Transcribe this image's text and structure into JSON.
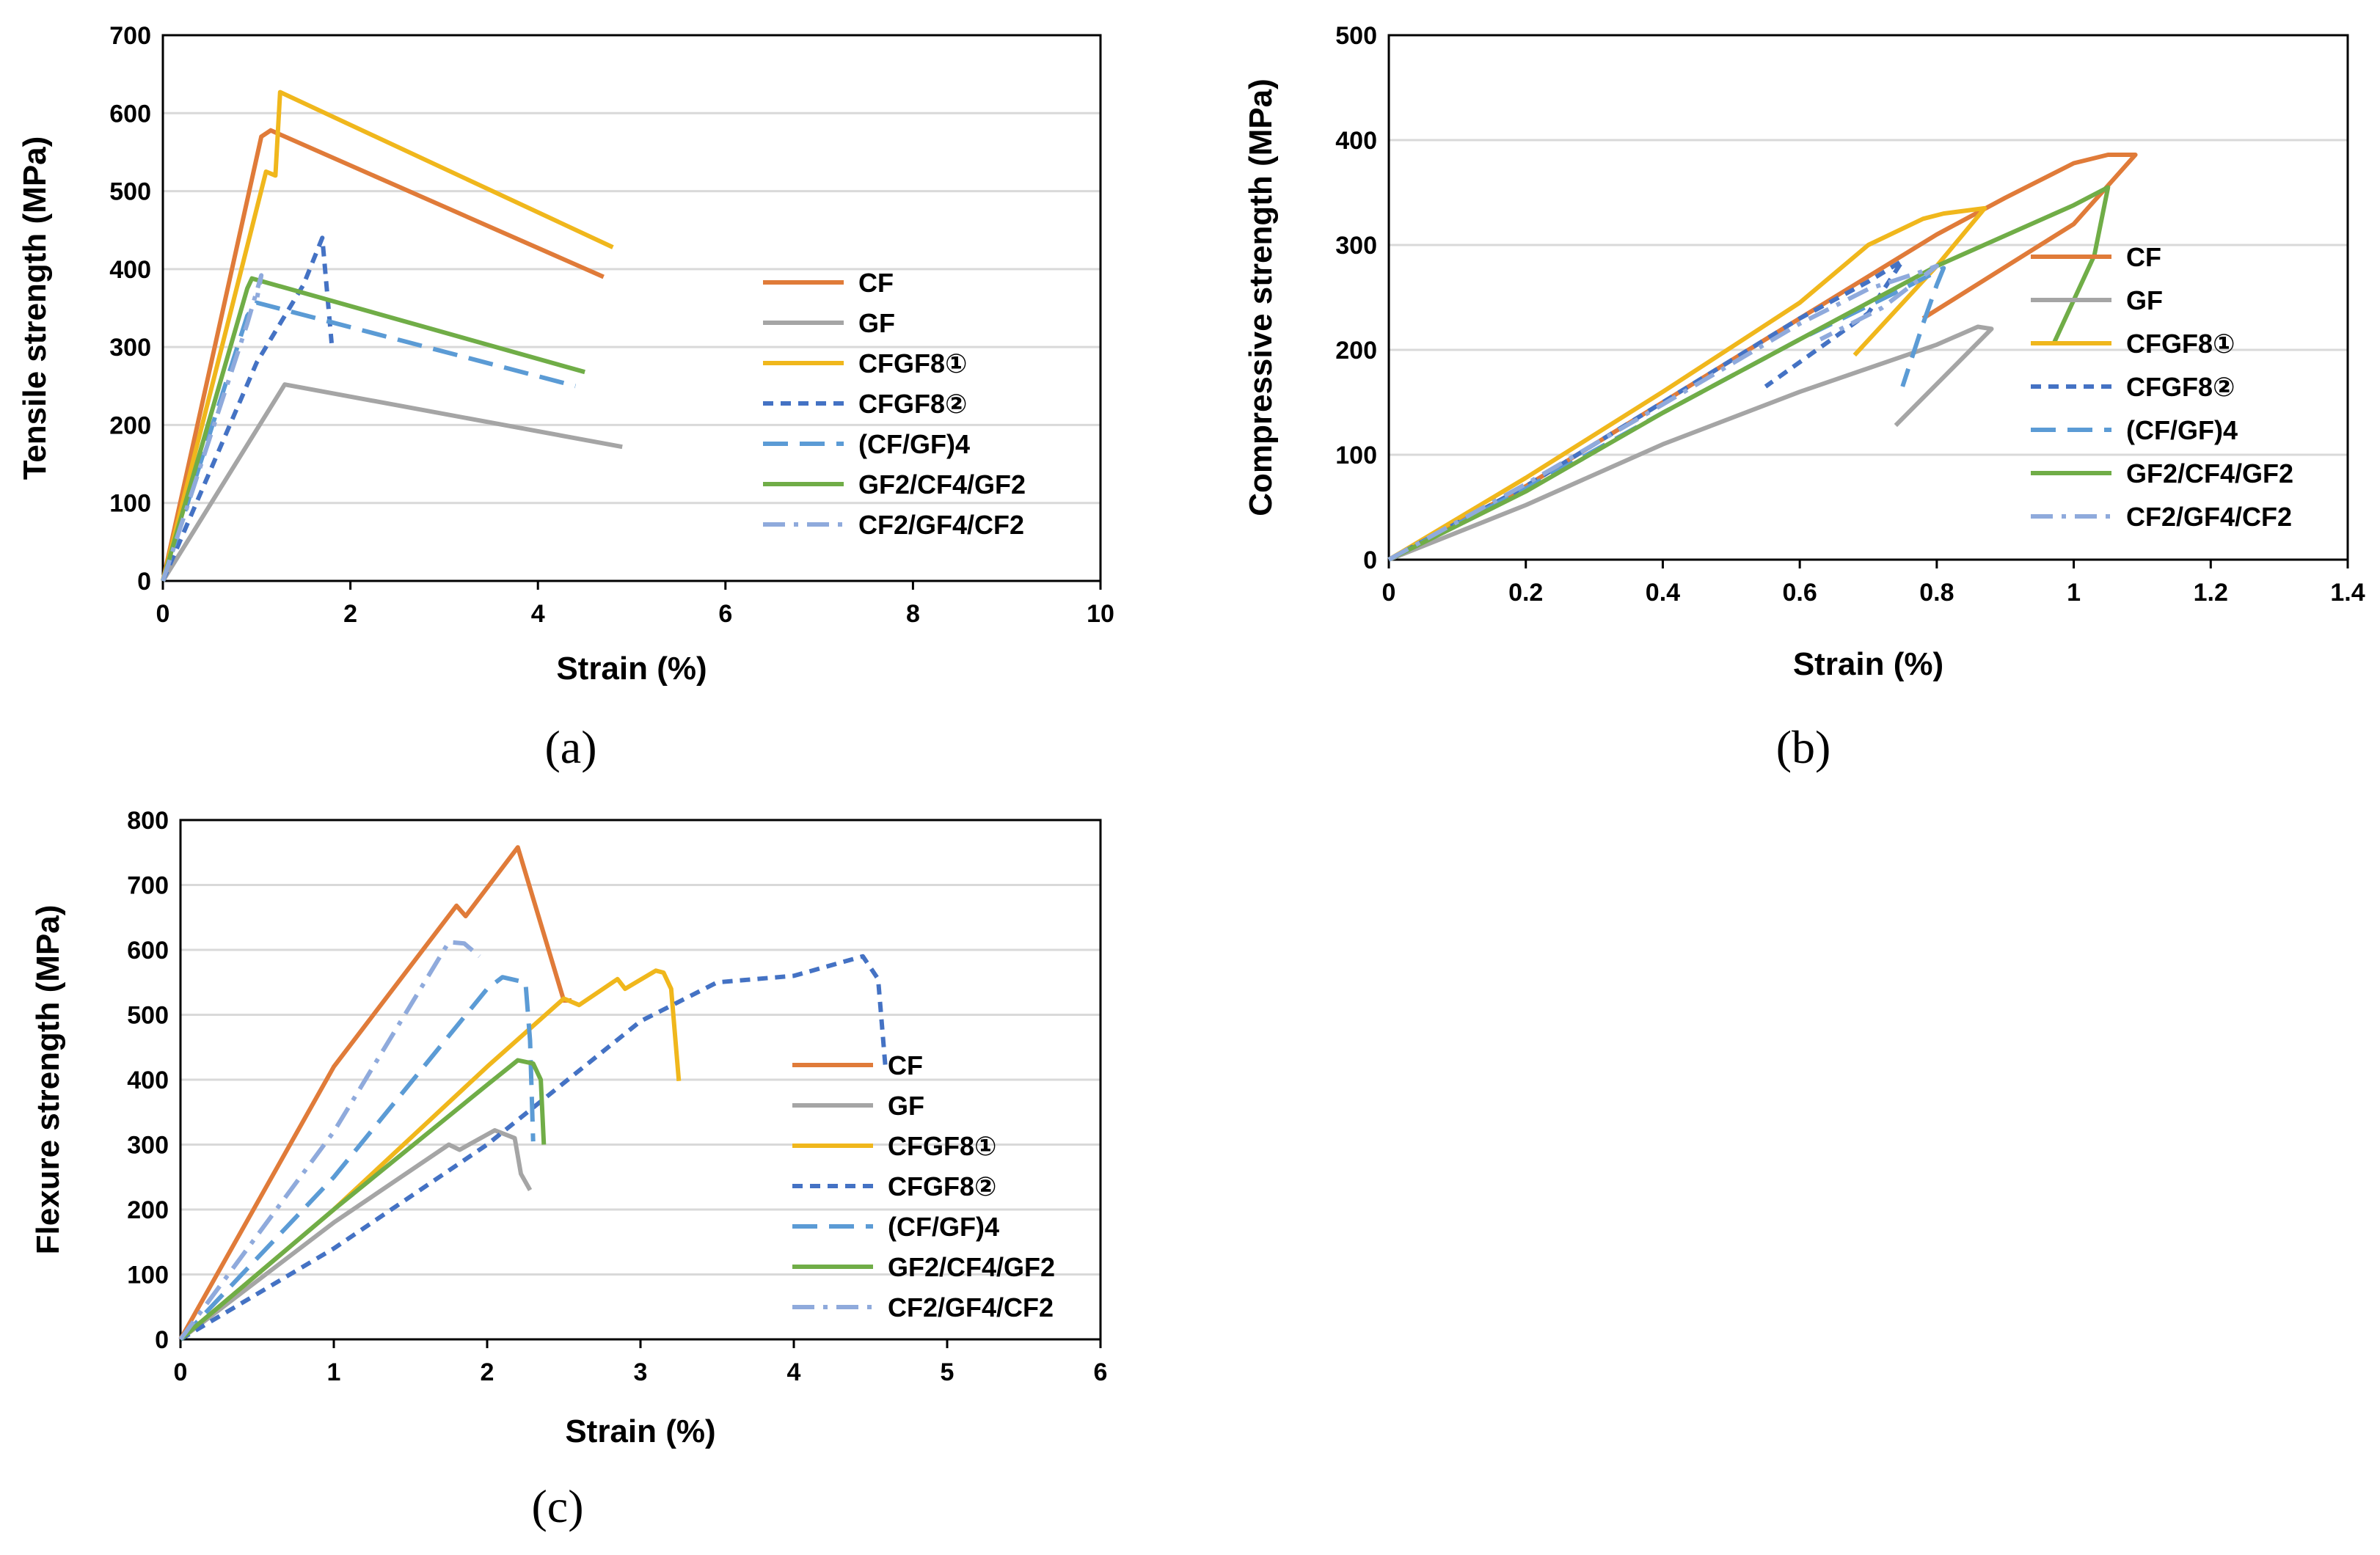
{
  "chart_data": [
    {
      "type": "line",
      "panel_label": "(a)",
      "xlabel": "Strain (%)",
      "ylabel": "Tensile strength (MPa)",
      "xlim": [
        0,
        10
      ],
      "ylim": [
        0,
        700
      ],
      "xticks": [
        0,
        2,
        4,
        6,
        8,
        10
      ],
      "yticks": [
        0,
        100,
        200,
        300,
        400,
        500,
        600,
        700
      ],
      "grid": "horizontal",
      "legend_position": "right",
      "series": [
        {
          "name": "CF",
          "color": "#E07B39",
          "dash": "solid",
          "x": [
            0,
            1.05,
            1.15,
            4.7
          ],
          "y": [
            0,
            570,
            578,
            390
          ]
        },
        {
          "name": "GF",
          "color": "#A5A5A5",
          "dash": "solid",
          "x": [
            0,
            1.3,
            4.9
          ],
          "y": [
            0,
            252,
            172
          ]
        },
        {
          "name": "CFGF8①",
          "color": "#F0B71C",
          "dash": "solid",
          "x": [
            0,
            1.1,
            1.2,
            1.25,
            4.8
          ],
          "y": [
            0,
            525,
            520,
            627,
            428
          ]
        },
        {
          "name": "CFGF8②",
          "color": "#4472C4",
          "dash": "short",
          "x": [
            0,
            1.0,
            1.5,
            1.7,
            1.8
          ],
          "y": [
            0,
            280,
            380,
            440,
            305
          ]
        },
        {
          "name": "(CF/GF)4",
          "color": "#5B9BD5",
          "dash": "long",
          "x": [
            0,
            0.9,
            1.0,
            4.4
          ],
          "y": [
            0,
            340,
            357,
            250
          ]
        },
        {
          "name": "GF2/CF4/GF2",
          "color": "#70AD47",
          "dash": "solid",
          "x": [
            0,
            0.9,
            0.95,
            4.5
          ],
          "y": [
            0,
            375,
            388,
            268
          ]
        },
        {
          "name": "CF2/GF4/CF2",
          "color": "#8FAADC",
          "dash": "dashdot",
          "x": [
            0,
            0.9,
            1.05,
            1.0
          ],
          "y": [
            0,
            330,
            392,
            360
          ]
        }
      ]
    },
    {
      "type": "line",
      "panel_label": "(b)",
      "xlabel": "Strain (%)",
      "ylabel": "Compressive strength (MPa)",
      "xlim": [
        0,
        1.4
      ],
      "ylim": [
        0,
        500
      ],
      "xticks": [
        "0",
        "0.2",
        "0.4",
        "0.6",
        "0.8",
        "1",
        "1.2",
        "1.4"
      ],
      "yticks": [
        0,
        100,
        200,
        300,
        400,
        500
      ],
      "grid": "horizontal",
      "legend_position": "right",
      "series": [
        {
          "name": "CF",
          "color": "#E07B39",
          "dash": "solid",
          "x": [
            0,
            0.2,
            0.4,
            0.6,
            0.8,
            0.9,
            1.0,
            1.05,
            1.09,
            1.0,
            0.78
          ],
          "y": [
            0,
            70,
            150,
            230,
            310,
            345,
            378,
            386,
            386,
            320,
            230
          ]
        },
        {
          "name": "GF",
          "color": "#A5A5A5",
          "dash": "solid",
          "x": [
            0,
            0.2,
            0.4,
            0.6,
            0.8,
            0.86,
            0.88,
            0.74
          ],
          "y": [
            0,
            52,
            110,
            160,
            205,
            222,
            220,
            128
          ]
        },
        {
          "name": "CFGF8①",
          "color": "#F0B71C",
          "dash": "solid",
          "x": [
            0,
            0.2,
            0.4,
            0.6,
            0.7,
            0.78,
            0.81,
            0.87,
            0.8,
            0.68
          ],
          "y": [
            0,
            78,
            160,
            245,
            300,
            325,
            330,
            335,
            280,
            195
          ]
        },
        {
          "name": "CFGF8②",
          "color": "#4472C4",
          "dash": "short",
          "x": [
            0,
            0.2,
            0.4,
            0.6,
            0.7,
            0.75,
            0.7,
            0.55
          ],
          "y": [
            0,
            70,
            150,
            230,
            265,
            285,
            235,
            165
          ]
        },
        {
          "name": "(CF/GF)4",
          "color": "#5B9BD5",
          "dash": "long",
          "x": [
            0,
            0.2,
            0.4,
            0.6,
            0.75,
            0.81,
            0.8,
            0.78,
            0.75
          ],
          "y": [
            0,
            68,
            140,
            210,
            258,
            278,
            262,
            225,
            165
          ]
        },
        {
          "name": "GF2/CF4/GF2",
          "color": "#70AD47",
          "dash": "solid",
          "x": [
            0,
            0.2,
            0.4,
            0.6,
            0.8,
            1.0,
            1.05,
            1.03,
            0.97
          ],
          "y": [
            0,
            65,
            140,
            210,
            280,
            338,
            355,
            290,
            205
          ]
        },
        {
          "name": "CF2/GF4/CF2",
          "color": "#8FAADC",
          "dash": "dashdot",
          "x": [
            0,
            0.2,
            0.4,
            0.6,
            0.7,
            0.78,
            0.8,
            0.72,
            0.63
          ],
          "y": [
            0,
            72,
            148,
            225,
            258,
            275,
            280,
            240,
            210
          ]
        }
      ]
    },
    {
      "type": "line",
      "panel_label": "(c)",
      "xlabel": "Strain (%)",
      "ylabel": "Flexure strength (MPa)",
      "xlim": [
        0,
        6
      ],
      "ylim": [
        0,
        800
      ],
      "xticks": [
        0,
        1,
        2,
        3,
        4,
        5,
        6
      ],
      "yticks": [
        0,
        100,
        200,
        300,
        400,
        500,
        600,
        700,
        800
      ],
      "grid": "horizontal",
      "legend_position": "center-right",
      "series": [
        {
          "name": "CF",
          "color": "#E07B39",
          "dash": "solid",
          "x": [
            0,
            1.0,
            1.8,
            1.86,
            2.2,
            2.5,
            2.55
          ],
          "y": [
            0,
            420,
            668,
            652,
            758,
            522,
            522
          ]
        },
        {
          "name": "GF",
          "color": "#A5A5A5",
          "dash": "solid",
          "x": [
            0,
            1.0,
            1.75,
            1.82,
            2.05,
            2.18,
            2.22,
            2.28
          ],
          "y": [
            0,
            180,
            300,
            292,
            322,
            310,
            255,
            230
          ]
        },
        {
          "name": "CFGF8①",
          "color": "#F0B71C",
          "dash": "solid",
          "x": [
            0,
            1.0,
            2.0,
            2.5,
            2.6,
            2.85,
            2.9,
            3.1,
            3.15,
            3.2,
            3.25
          ],
          "y": [
            0,
            200,
            420,
            525,
            515,
            555,
            540,
            568,
            565,
            540,
            398
          ]
        },
        {
          "name": "CFGF8②",
          "color": "#4472C4",
          "dash": "short",
          "x": [
            0,
            1.0,
            2.0,
            3.0,
            3.5,
            4.0,
            4.45,
            4.55,
            4.6
          ],
          "y": [
            0,
            140,
            300,
            490,
            550,
            560,
            590,
            555,
            412
          ]
        },
        {
          "name": "(CF/GF)4",
          "color": "#5B9BD5",
          "dash": "long",
          "x": [
            0,
            1.0,
            2.0,
            2.1,
            2.25,
            2.28,
            2.3
          ],
          "y": [
            0,
            250,
            540,
            558,
            550,
            460,
            305
          ]
        },
        {
          "name": "GF2/CF4/GF2",
          "color": "#70AD47",
          "dash": "solid",
          "x": [
            0,
            1.0,
            2.0,
            2.2,
            2.3,
            2.35,
            2.37
          ],
          "y": [
            0,
            200,
            392,
            430,
            425,
            400,
            300
          ]
        },
        {
          "name": "CF2/GF4/CF2",
          "color": "#8FAADC",
          "dash": "dashdot",
          "x": [
            0,
            1.0,
            1.75,
            1.85,
            1.95
          ],
          "y": [
            0,
            320,
            612,
            610,
            590
          ]
        }
      ]
    }
  ]
}
